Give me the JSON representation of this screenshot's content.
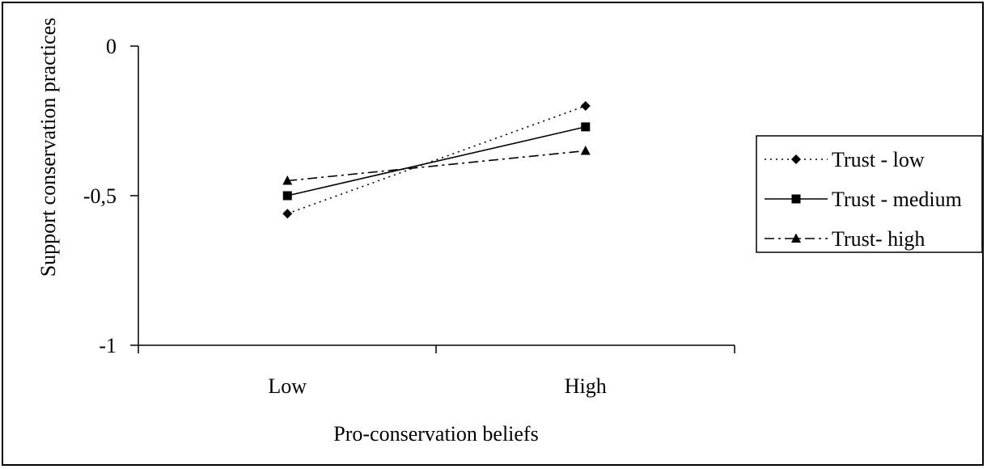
{
  "chart_data": {
    "type": "line",
    "title": "",
    "xlabel": "Pro-conservation beliefs",
    "ylabel": "Support conservation practices",
    "categories": [
      "Low",
      "High"
    ],
    "ylim": [
      -1,
      0
    ],
    "yticks": [
      0,
      -0.5,
      -1
    ],
    "ytick_labels": [
      "0",
      "-0,5",
      "-1"
    ],
    "grid": false,
    "legend_position": "right",
    "series": [
      {
        "name": "Trust - low",
        "values": [
          -0.56,
          -0.2
        ],
        "marker": "diamond",
        "dash": "dotted",
        "color": "#000000"
      },
      {
        "name": "Trust - medium",
        "values": [
          -0.5,
          -0.27
        ],
        "marker": "square",
        "dash": "solid",
        "color": "#000000"
      },
      {
        "name": "Trust- high",
        "values": [
          -0.45,
          -0.35
        ],
        "marker": "triangle",
        "dash": "dash-dot",
        "color": "#000000"
      }
    ]
  }
}
